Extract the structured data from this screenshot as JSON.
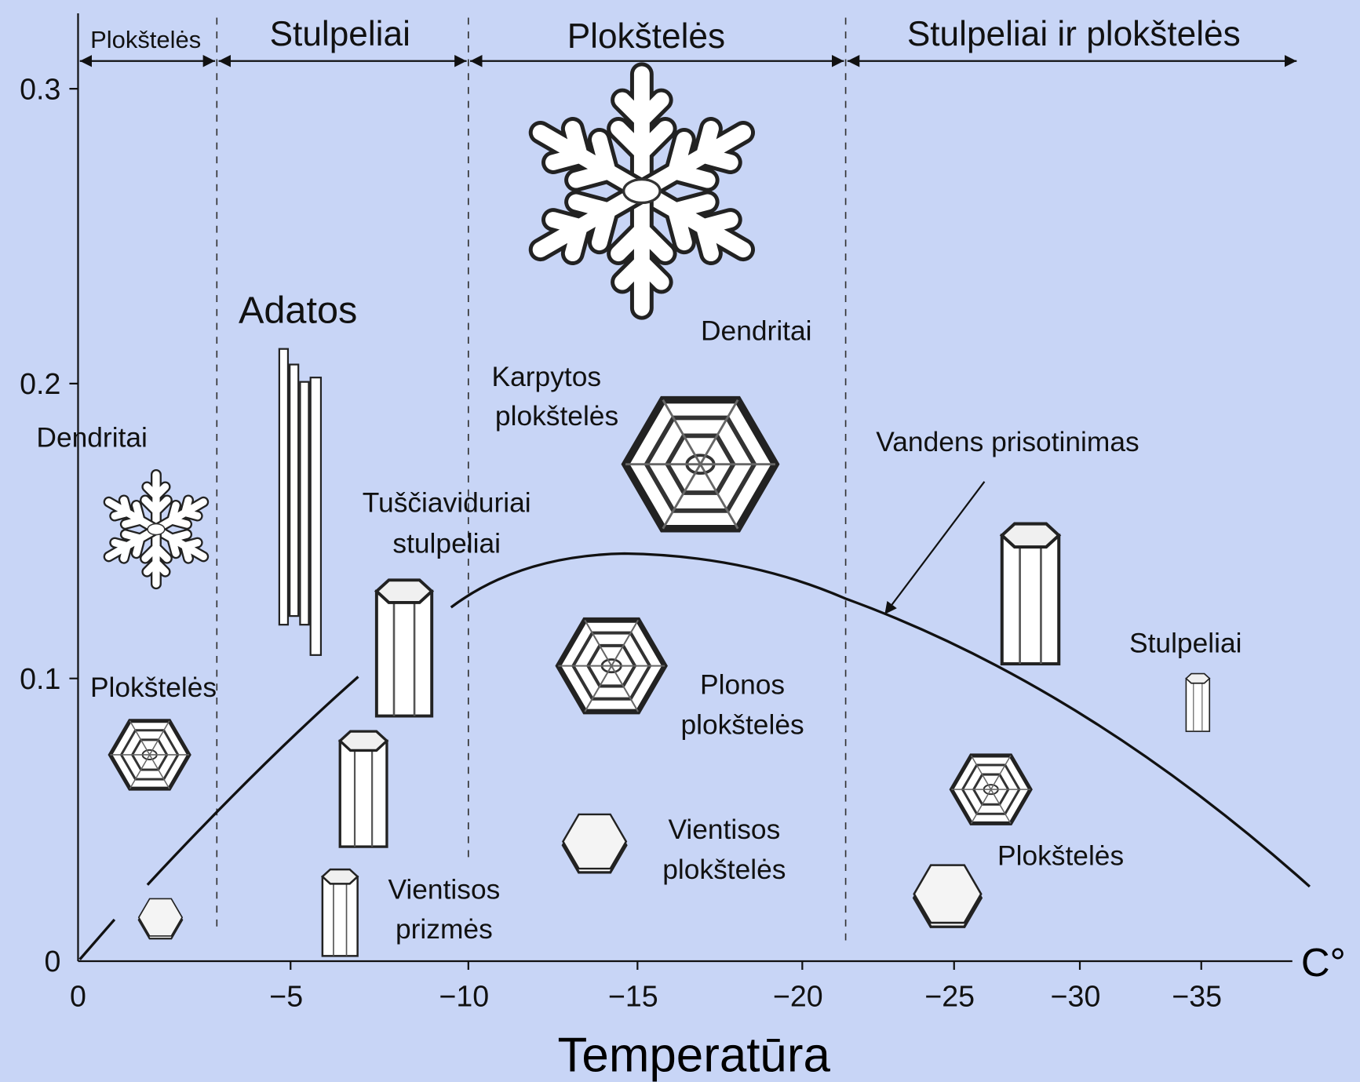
{
  "regions": [
    "Plokštelės",
    "Stulpeliai",
    "Plokštelės",
    "Stulpeliai ir plokštelės"
  ],
  "y_axis": {
    "ticks": [
      "0.3",
      "0.2",
      "0.1",
      "0"
    ]
  },
  "x_axis": {
    "ticks": [
      "0",
      "−5",
      "−10",
      "−15",
      "−20",
      "−25",
      "−30",
      "−35"
    ],
    "unit": "C°",
    "title": "Temperatūra"
  },
  "labels": {
    "adatos": "Adatos",
    "dendritai_left": "Dendritai",
    "dendritai_right": "Dendritai",
    "karpytos": [
      "Karpytos",
      "plokštelės"
    ],
    "tusciaviduriai": [
      "Tuščiaviduriai",
      "stulpeliai"
    ],
    "ploksteles_left": "Plokštelės",
    "vientisos_prizmes": [
      "Vientisos",
      "prizmės"
    ],
    "plonos": [
      "Plonos",
      "plokštelės"
    ],
    "vientisos_plokst": [
      "Vientisos",
      "plokštelės"
    ],
    "vandens": "Vandens prisotinimas",
    "stulpeliai_right": "Stulpeliai",
    "plokst_right": "Plokštelės"
  }
}
